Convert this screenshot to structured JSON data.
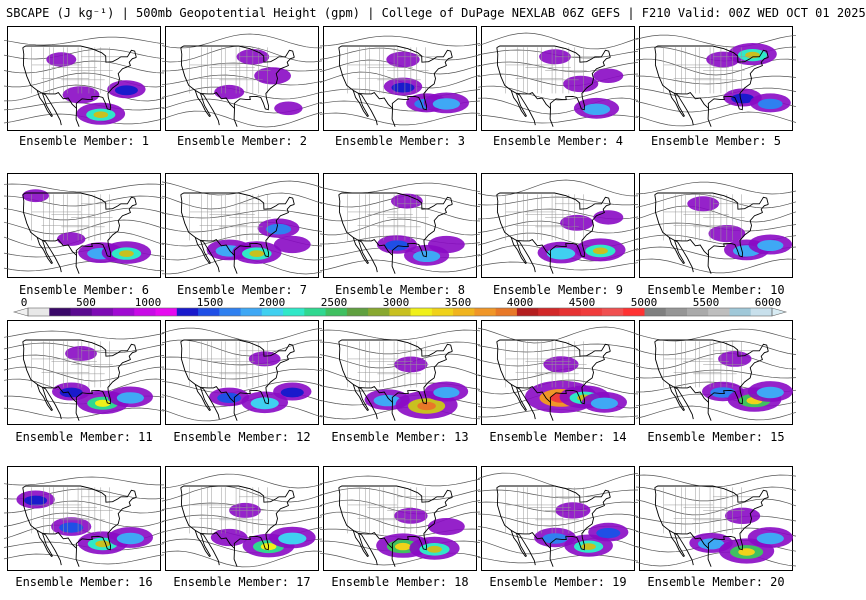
{
  "header": {
    "title": "SBCAPE (J kg⁻¹) | 500mb Geopotential Height (gpm) | College of DuPage NEXLAB 06Z GEFS | F210 Valid: 00Z WED OCT 01 2025"
  },
  "colorbar": {
    "tick_labels": [
      "0",
      "500",
      "1000",
      "1500",
      "2000",
      "2500",
      "3000",
      "3500",
      "4000",
      "4500",
      "5000",
      "5500",
      "6000"
    ],
    "colors": [
      "#e8e8e8",
      "#3a0868",
      "#5a0a90",
      "#7d0ab4",
      "#a00ad2",
      "#c80ae6",
      "#e60af0",
      "#1a1acc",
      "#1f4fe6",
      "#2f80f0",
      "#3fa8f5",
      "#40d0f0",
      "#30e8c8",
      "#30d890",
      "#40c060",
      "#60a040",
      "#88a830",
      "#c8c020",
      "#f0f01a",
      "#f0d21a",
      "#f0b41e",
      "#f09628",
      "#e87828",
      "#b41e1e",
      "#d22828",
      "#e63232",
      "#f03c3c",
      "#f05050",
      "#ff3232",
      "#808080",
      "#969696",
      "#aaaaaa",
      "#bebebe",
      "#a0c8d8",
      "#c8e0ec"
    ],
    "max_value": 6000
  },
  "members": [
    {
      "label": "Ensemble Member: 1",
      "cape": [
        {
          "lon": -105,
          "lat": 44,
          "v": 0.12
        },
        {
          "lon": -95,
          "lat": 31,
          "v": 0.2
        },
        {
          "lon": -85,
          "lat": 24,
          "v": 0.34
        },
        {
          "lon": -72,
          "lat": 33,
          "v": 0.22
        }
      ]
    },
    {
      "label": "Ensemble Member: 2",
      "cape": [
        {
          "lon": -88,
          "lat": 45,
          "v": 0.15
        },
        {
          "lon": -78,
          "lat": 38,
          "v": 0.2
        },
        {
          "lon": -100,
          "lat": 32,
          "v": 0.12
        },
        {
          "lon": -70,
          "lat": 26,
          "v": 0.1
        }
      ]
    },
    {
      "label": "Ensemble Member: 3",
      "cape": [
        {
          "lon": -92,
          "lat": 44,
          "v": 0.16
        },
        {
          "lon": -92,
          "lat": 34,
          "v": 0.22
        },
        {
          "lon": -80,
          "lat": 28,
          "v": 0.25
        },
        {
          "lon": -70,
          "lat": 28,
          "v": 0.3
        }
      ]
    },
    {
      "label": "Ensemble Member: 4",
      "cape": [
        {
          "lon": -95,
          "lat": 45,
          "v": 0.14
        },
        {
          "lon": -82,
          "lat": 35,
          "v": 0.18
        },
        {
          "lon": -74,
          "lat": 26,
          "v": 0.3
        },
        {
          "lon": -68,
          "lat": 38,
          "v": 0.12
        }
      ]
    },
    {
      "label": "Ensemble Member: 5",
      "cape": [
        {
          "lon": -90,
          "lat": 44,
          "v": 0.16
        },
        {
          "lon": -75,
          "lat": 46,
          "v": 0.34
        },
        {
          "lon": -80,
          "lat": 30,
          "v": 0.22
        },
        {
          "lon": -66,
          "lat": 28,
          "v": 0.25
        }
      ]
    },
    {
      "label": "Ensemble Member: 6",
      "cape": [
        {
          "lon": -100,
          "lat": 32,
          "v": 0.1
        },
        {
          "lon": -85,
          "lat": 27,
          "v": 0.3
        },
        {
          "lon": -72,
          "lat": 27,
          "v": 0.35
        },
        {
          "lon": -118,
          "lat": 48,
          "v": 0.08
        }
      ]
    },
    {
      "label": "Ensemble Member: 7",
      "cape": [
        {
          "lon": -100,
          "lat": 28,
          "v": 0.3
        },
        {
          "lon": -86,
          "lat": 27,
          "v": 0.35
        },
        {
          "lon": -75,
          "lat": 36,
          "v": 0.26
        },
        {
          "lon": -68,
          "lat": 30,
          "v": 0.2
        }
      ]
    },
    {
      "label": "Ensemble Member: 8",
      "cape": [
        {
          "lon": -90,
          "lat": 46,
          "v": 0.14
        },
        {
          "lon": -95,
          "lat": 30,
          "v": 0.24
        },
        {
          "lon": -80,
          "lat": 26,
          "v": 0.3
        },
        {
          "lon": -70,
          "lat": 30,
          "v": 0.2
        }
      ]
    },
    {
      "label": "Ensemble Member: 9",
      "cape": [
        {
          "lon": -84,
          "lat": 38,
          "v": 0.16
        },
        {
          "lon": -92,
          "lat": 27,
          "v": 0.32
        },
        {
          "lon": -72,
          "lat": 28,
          "v": 0.36
        },
        {
          "lon": -68,
          "lat": 40,
          "v": 0.12
        }
      ]
    },
    {
      "label": "Ensemble Member: 10",
      "cape": [
        {
          "lon": -100,
          "lat": 45,
          "v": 0.14
        },
        {
          "lon": -88,
          "lat": 34,
          "v": 0.2
        },
        {
          "lon": -78,
          "lat": 28,
          "v": 0.3
        },
        {
          "lon": -66,
          "lat": 30,
          "v": 0.28
        }
      ]
    },
    {
      "label": "Ensemble Member: 11",
      "cape": [
        {
          "lon": -95,
          "lat": 44,
          "v": 0.14
        },
        {
          "lon": -100,
          "lat": 30,
          "v": 0.22
        },
        {
          "lon": -84,
          "lat": 26,
          "v": 0.38
        },
        {
          "lon": -70,
          "lat": 28,
          "v": 0.3
        }
      ]
    },
    {
      "label": "Ensemble Member: 12",
      "cape": [
        {
          "lon": -82,
          "lat": 42,
          "v": 0.14
        },
        {
          "lon": -100,
          "lat": 28,
          "v": 0.24
        },
        {
          "lon": -82,
          "lat": 26,
          "v": 0.32
        },
        {
          "lon": -68,
          "lat": 30,
          "v": 0.22
        }
      ]
    },
    {
      "label": "Ensemble Member: 13",
      "cape": [
        {
          "lon": -88,
          "lat": 40,
          "v": 0.16
        },
        {
          "lon": -100,
          "lat": 27,
          "v": 0.3
        },
        {
          "lon": -80,
          "lat": 25,
          "v": 0.5
        },
        {
          "lon": -70,
          "lat": 30,
          "v": 0.28
        }
      ]
    },
    {
      "label": "Ensemble Member: 14",
      "cape": [
        {
          "lon": -92,
          "lat": 40,
          "v": 0.18
        },
        {
          "lon": -92,
          "lat": 28,
          "v": 0.62
        },
        {
          "lon": -80,
          "lat": 28,
          "v": 0.36
        },
        {
          "lon": -70,
          "lat": 26,
          "v": 0.3
        }
      ]
    },
    {
      "label": "Ensemble Member: 15",
      "cape": [
        {
          "lon": -84,
          "lat": 42,
          "v": 0.16
        },
        {
          "lon": -90,
          "lat": 30,
          "v": 0.26
        },
        {
          "lon": -74,
          "lat": 27,
          "v": 0.4
        },
        {
          "lon": -66,
          "lat": 30,
          "v": 0.3
        }
      ]
    },
    {
      "label": "Ensemble Member: 16",
      "cape": [
        {
          "lon": -118,
          "lat": 44,
          "v": 0.22
        },
        {
          "lon": -100,
          "lat": 34,
          "v": 0.24
        },
        {
          "lon": -84,
          "lat": 28,
          "v": 0.36
        },
        {
          "lon": -70,
          "lat": 30,
          "v": 0.3
        }
      ]
    },
    {
      "label": "Ensemble Member: 17",
      "cape": [
        {
          "lon": -92,
          "lat": 40,
          "v": 0.14
        },
        {
          "lon": -100,
          "lat": 30,
          "v": 0.2
        },
        {
          "lon": -80,
          "lat": 27,
          "v": 0.38
        },
        {
          "lon": -68,
          "lat": 30,
          "v": 0.32
        }
      ]
    },
    {
      "label": "Ensemble Member: 18",
      "cape": [
        {
          "lon": -88,
          "lat": 38,
          "v": 0.16
        },
        {
          "lon": -92,
          "lat": 27,
          "v": 0.4
        },
        {
          "lon": -76,
          "lat": 26,
          "v": 0.36
        },
        {
          "lon": -70,
          "lat": 34,
          "v": 0.2
        }
      ]
    },
    {
      "label": "Ensemble Member: 19",
      "cape": [
        {
          "lon": -86,
          "lat": 40,
          "v": 0.18
        },
        {
          "lon": -95,
          "lat": 30,
          "v": 0.26
        },
        {
          "lon": -78,
          "lat": 27,
          "v": 0.34
        },
        {
          "lon": -68,
          "lat": 32,
          "v": 0.24
        }
      ]
    },
    {
      "label": "Ensemble Member: 20",
      "cape": [
        {
          "lon": -80,
          "lat": 38,
          "v": 0.18
        },
        {
          "lon": -96,
          "lat": 28,
          "v": 0.28
        },
        {
          "lon": -78,
          "lat": 25,
          "v": 0.42
        },
        {
          "lon": -66,
          "lat": 30,
          "v": 0.3
        }
      ]
    }
  ]
}
